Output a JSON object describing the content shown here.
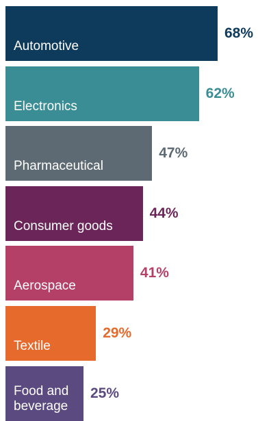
{
  "chart_data": {
    "type": "bar",
    "orientation": "horizontal",
    "title": "",
    "xlabel": "",
    "ylabel": "",
    "xlim": [
      0,
      100
    ],
    "grid": false,
    "categories": [
      "Automotive",
      "Electronics",
      "Pharmaceutical",
      "Consumer goods",
      "Aerospace",
      "Textile",
      "Food and beverage"
    ],
    "values": [
      68,
      62,
      47,
      44,
      41,
      29,
      25
    ],
    "value_labels": [
      "68%",
      "62%",
      "47%",
      "44%",
      "41%",
      "29%",
      "25%"
    ],
    "colors": [
      "#0e3a5c",
      "#3a8d95",
      "#5d6a73",
      "#6b2558",
      "#b43f67",
      "#e66a2c",
      "#5b4a80"
    ]
  }
}
